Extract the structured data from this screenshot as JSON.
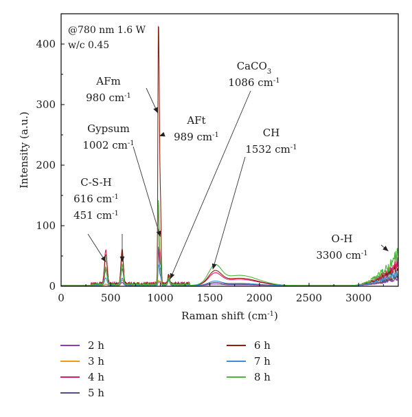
{
  "chart_data": {
    "type": "line",
    "xlabel": "Raman shift (cm-1)",
    "xlabel_main": "Raman shift (cm",
    "xlabel_sup": "-1",
    "xlabel_end": ")",
    "ylabel": "Intensity (a.u.)",
    "xlim": [
      0,
      3400
    ],
    "ylim": [
      0,
      450
    ],
    "xticks": [
      0,
      500,
      1000,
      1500,
      2000,
      2500,
      3000
    ],
    "yticks": [
      0,
      100,
      200,
      300,
      400
    ],
    "legend_position": "bottom",
    "notes": [
      "@780 nm 1.6 W",
      "w/c 0.45"
    ],
    "annotations": [
      {
        "lines": [
          "AFm",
          "980 cm|-1"
        ],
        "point": [
          975,
          286
        ]
      },
      {
        "lines": [
          "AFt",
          "989 cm|-1"
        ],
        "point": [
          990,
          248
        ]
      },
      {
        "lines": [
          "Gypsum",
          "1002 cm|-1"
        ],
        "point": [
          1000,
          82
        ]
      },
      {
        "lines": [
          "CaCO|3",
          "1086 cm|-1"
        ],
        "point": [
          1100,
          12
        ]
      },
      {
        "lines": [
          "CH",
          "1532 cm|-1"
        ],
        "point": [
          1530,
          28
        ]
      },
      {
        "lines": [
          "C-S-H",
          "616 cm|-1",
          "451 cm|-1"
        ],
        "point": [
          451,
          40
        ]
      },
      {
        "lines": [
          "O-H",
          "3300 cm|-1"
        ],
        "point": [
          3300,
          58
        ]
      }
    ],
    "peaks_x": [
      451,
      616,
      980,
      989,
      1002,
      1086,
      1532,
      3300
    ],
    "series": [
      {
        "name": "2 h",
        "color": "#8e3cb4",
        "values": [
          2,
          5,
          4,
          4,
          5,
          10,
          2,
          15
        ]
      },
      {
        "name": "3 h",
        "color": "#f2971c",
        "values": [
          2,
          9,
          6,
          5,
          6,
          8,
          4,
          24
        ]
      },
      {
        "name": "4 h",
        "color": "#e0186b",
        "values": [
          55,
          55,
          120,
          48,
          30,
          12,
          17,
          48
        ]
      },
      {
        "name": "5 h",
        "color": "#5a4a78",
        "values": [
          25,
          27,
          55,
          24,
          14,
          8,
          4,
          20
        ]
      },
      {
        "name": "6 h",
        "color": "#8c1f0d",
        "values": [
          50,
          57,
          352,
          248,
          132,
          15,
          20,
          42
        ]
      },
      {
        "name": "7 h",
        "color": "#3b8fd4",
        "values": [
          12,
          12,
          22,
          26,
          25,
          8,
          6,
          30
        ]
      },
      {
        "name": "8 h",
        "color": "#4db63a",
        "values": [
          28,
          34,
          120,
          62,
          45,
          10,
          28,
          65
        ]
      }
    ]
  }
}
